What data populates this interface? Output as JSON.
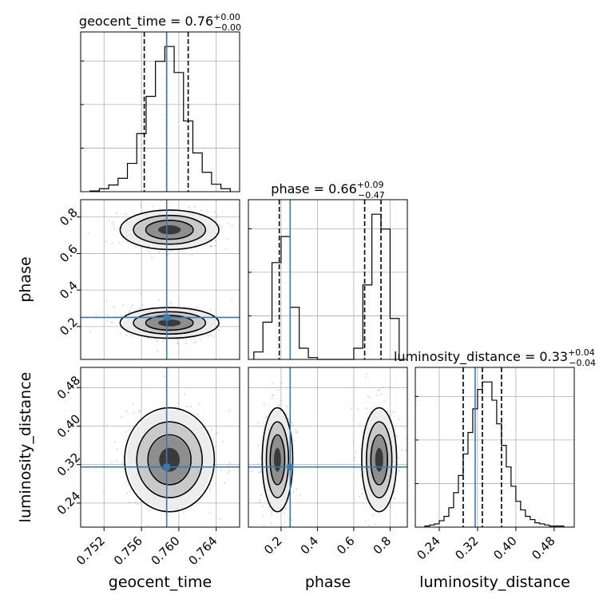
{
  "chart_data": {
    "type": "corner",
    "parameters": [
      "geocent_time",
      "phase",
      "luminosity_distance"
    ],
    "axis_labels": [
      "geocent_time",
      "phase",
      "luminosity_distance"
    ],
    "ranges": {
      "geocent_time": [
        0.7495,
        0.7665
      ],
      "phase": [
        0.02,
        0.895
      ],
      "luminosity_distance": [
        0.19,
        0.522
      ]
    },
    "ticks": {
      "geocent_time": [
        "0.752",
        "0.756",
        "0.760",
        "0.764"
      ],
      "phase": [
        "0.2",
        "0.4",
        "0.6",
        "0.8"
      ],
      "luminosity_distance": [
        "0.24",
        "0.32",
        "0.40",
        "0.48"
      ]
    },
    "titles": [
      {
        "param": "geocent_time",
        "text": "geocent_time = 0.76",
        "upper": "+0.00",
        "lower": "−0.00"
      },
      {
        "param": "phase",
        "text": "phase = 0.66",
        "upper": "+0.09",
        "lower": "−0.47"
      },
      {
        "param": "luminosity_distance",
        "text": "luminosity_distance = 0.33",
        "upper": "+0.04",
        "lower": "−0.04"
      }
    ],
    "truths": {
      "geocent_time": 0.7587,
      "phase": 0.25,
      "luminosity_distance": 0.315
    },
    "quantiles": {
      "geocent_time": [
        0.7563,
        0.7587,
        0.761
      ],
      "phase": [
        0.19,
        0.66,
        0.75
      ],
      "luminosity_distance": [
        0.29,
        0.33,
        0.37
      ]
    },
    "histograms": {
      "geocent_time": {
        "edges": [
          0.7505,
          0.7515,
          0.7525,
          0.7535,
          0.7545,
          0.7555,
          0.7565,
          0.7575,
          0.7585,
          0.7595,
          0.7605,
          0.7615,
          0.7625,
          0.7635,
          0.7645,
          0.7655
        ],
        "counts": [
          1,
          4,
          9,
          18,
          38,
          78,
          128,
          175,
          195,
          160,
          95,
          52,
          26,
          10,
          4
        ]
      },
      "phase": {
        "edges": [
          0.05,
          0.1,
          0.15,
          0.2,
          0.25,
          0.3,
          0.35,
          0.4,
          0.45,
          0.5,
          0.55,
          0.6,
          0.65,
          0.7,
          0.75,
          0.8,
          0.85
        ],
        "counts": [
          4,
          20,
          52,
          66,
          28,
          6,
          1,
          0,
          0,
          0,
          0,
          6,
          40,
          78,
          70,
          22
        ]
      },
      "luminosity_distance": {
        "edges": [
          0.21,
          0.22,
          0.23,
          0.24,
          0.25,
          0.26,
          0.27,
          0.28,
          0.29,
          0.3,
          0.31,
          0.32,
          0.33,
          0.34,
          0.35,
          0.36,
          0.37,
          0.38,
          0.39,
          0.4,
          0.41,
          0.42,
          0.43,
          0.44,
          0.45,
          0.46,
          0.47,
          0.48,
          0.49,
          0.5
        ],
        "counts": [
          1,
          2,
          3,
          6,
          10,
          18,
          32,
          48,
          68,
          88,
          110,
          128,
          135,
          135,
          118,
          96,
          76,
          56,
          38,
          24,
          16,
          10,
          7,
          4,
          3,
          2,
          1,
          1,
          1
        ]
      }
    },
    "contour_regions": {
      "phase_vs_geocent_time": [
        {
          "cx": 0.759,
          "cy": 0.73,
          "sx": 0.0022,
          "sy": 0.045
        },
        {
          "cx": 0.759,
          "cy": 0.22,
          "sx": 0.0022,
          "sy": 0.035
        }
      ],
      "luminosity_distance_vs_geocent_time": [
        {
          "cx": 0.759,
          "cy": 0.33,
          "sx": 0.002,
          "sy": 0.045
        }
      ],
      "luminosity_distance_vs_phase": [
        {
          "cx": 0.18,
          "cy": 0.33,
          "sx": 0.035,
          "sy": 0.045
        },
        {
          "cx": 0.74,
          "cy": 0.33,
          "sx": 0.04,
          "sy": 0.045
        }
      ]
    },
    "colors": {
      "truth": "#3a78b0",
      "contour": "#000000",
      "grid": "#b0b0b0"
    },
    "grid": true
  }
}
